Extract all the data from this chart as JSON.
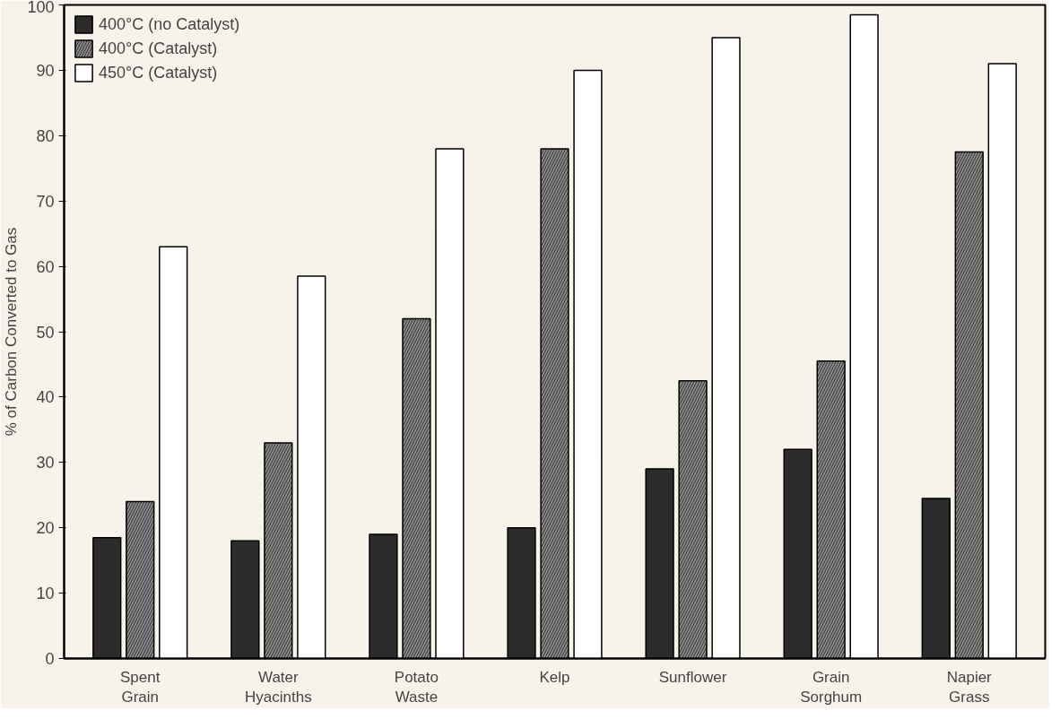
{
  "chart_data": {
    "type": "bar",
    "ylabel": "% of Carbon Converted to Gas",
    "categories": [
      "Spent Grain",
      "Water Hyacinths",
      "Potato Waste",
      "Kelp",
      "Sunflower",
      "Grain Sorghum",
      "Napier Grass"
    ],
    "series": [
      {
        "name": "400°C (no Catalyst)",
        "color": "#2b2b2b",
        "values": [
          18.5,
          18,
          19,
          20,
          29,
          32,
          24.5
        ]
      },
      {
        "name": "400°C (Catalyst)",
        "color": "#8a8a8a",
        "values": [
          24,
          33,
          52,
          78,
          42.5,
          45.5,
          77.5
        ]
      },
      {
        "name": "450°C (Catalyst)",
        "color": "#ffffff",
        "values": [
          63,
          58.5,
          78,
          90,
          95,
          98.5,
          91
        ]
      }
    ],
    "ylim": [
      0,
      100
    ],
    "yticks": [
      0,
      10,
      20,
      30,
      40,
      50,
      60,
      70,
      80,
      90,
      100
    ],
    "grid": false,
    "legend": "top left"
  }
}
